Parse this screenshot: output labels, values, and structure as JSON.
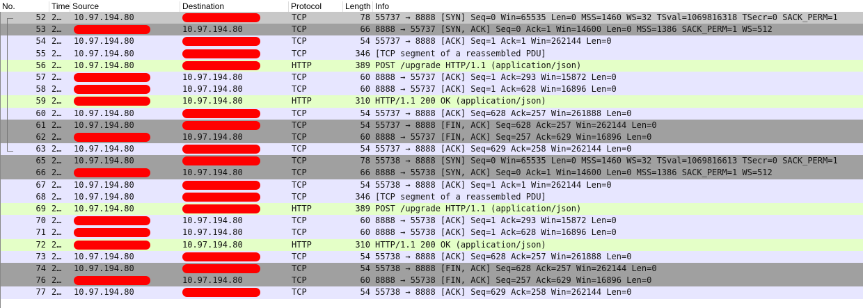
{
  "columns": {
    "no": "No.",
    "time": "Time",
    "source": "Source",
    "destination": "Destination",
    "protocol": "Protocol",
    "length": "Length",
    "info": "Info"
  },
  "colors": {
    "tcp": "#e7e6ff",
    "http": "#e4ffc7",
    "flags": "#a0a0a0",
    "selected": "#c8c8c8",
    "redaction": "#ff0000"
  },
  "rows": [
    {
      "no": "52",
      "time": "2…",
      "source": "10.97.194.80",
      "destination": "",
      "protocol": "TCP",
      "length": "78",
      "info": "55737 → 8888 [SYN] Seq=0 Win=65535 Len=0 MSS=1460 WS=32 TSval=1069816318 TSecr=0 SACK_PERM=1",
      "style": "sel"
    },
    {
      "no": "53",
      "time": "2…",
      "source": "",
      "destination": "10.97.194.80",
      "protocol": "TCP",
      "length": "66",
      "info": "8888 → 55737 [SYN, ACK] Seq=0 Ack=1 Win=14600 Len=0 MSS=1386 SACK_PERM=1 WS=512",
      "style": "flag"
    },
    {
      "no": "54",
      "time": "2…",
      "source": "10.97.194.80",
      "destination": "",
      "protocol": "TCP",
      "length": "54",
      "info": "55737 → 8888 [ACK] Seq=1 Ack=1 Win=262144 Len=0",
      "style": "tcp"
    },
    {
      "no": "55",
      "time": "2…",
      "source": "10.97.194.80",
      "destination": "",
      "protocol": "TCP",
      "length": "346",
      "info": "[TCP segment of a reassembled PDU]",
      "style": "tcp"
    },
    {
      "no": "56",
      "time": "2…",
      "source": "10.97.194.80",
      "destination": "",
      "protocol": "HTTP",
      "length": "389",
      "info": "POST /upgrade HTTP/1.1  (application/json)",
      "style": "http"
    },
    {
      "no": "57",
      "time": "2…",
      "source": "",
      "destination": "10.97.194.80",
      "protocol": "TCP",
      "length": "60",
      "info": "8888 → 55737 [ACK] Seq=1 Ack=293 Win=15872 Len=0",
      "style": "tcp"
    },
    {
      "no": "58",
      "time": "2…",
      "source": "",
      "destination": "10.97.194.80",
      "protocol": "TCP",
      "length": "60",
      "info": "8888 → 55737 [ACK] Seq=1 Ack=628 Win=16896 Len=0",
      "style": "tcp"
    },
    {
      "no": "59",
      "time": "2…",
      "source": "",
      "destination": "10.97.194.80",
      "protocol": "HTTP",
      "length": "310",
      "info": "HTTP/1.1 200 OK  (application/json)",
      "style": "http"
    },
    {
      "no": "60",
      "time": "2…",
      "source": "10.97.194.80",
      "destination": "",
      "protocol": "TCP",
      "length": "54",
      "info": "55737 → 8888 [ACK] Seq=628 Ack=257 Win=261888 Len=0",
      "style": "tcp"
    },
    {
      "no": "61",
      "time": "2…",
      "source": "10.97.194.80",
      "destination": "",
      "protocol": "TCP",
      "length": "54",
      "info": "55737 → 8888 [FIN, ACK] Seq=628 Ack=257 Win=262144 Len=0",
      "style": "flag"
    },
    {
      "no": "62",
      "time": "2…",
      "source": "",
      "destination": "10.97.194.80",
      "protocol": "TCP",
      "length": "60",
      "info": "8888 → 55737 [FIN, ACK] Seq=257 Ack=629 Win=16896 Len=0",
      "style": "flag"
    },
    {
      "no": "63",
      "time": "2…",
      "source": "10.97.194.80",
      "destination": "",
      "protocol": "TCP",
      "length": "54",
      "info": "55737 → 8888 [ACK] Seq=629 Ack=258 Win=262144 Len=0",
      "style": "tcp"
    },
    {
      "no": "65",
      "time": "2…",
      "source": "10.97.194.80",
      "destination": "",
      "protocol": "TCP",
      "length": "78",
      "info": "55738 → 8888 [SYN] Seq=0 Win=65535 Len=0 MSS=1460 WS=32 TSval=1069816613 TSecr=0 SACK_PERM=1",
      "style": "flag"
    },
    {
      "no": "66",
      "time": "2…",
      "source": "",
      "destination": "10.97.194.80",
      "protocol": "TCP",
      "length": "66",
      "info": "8888 → 55738 [SYN, ACK] Seq=0 Ack=1 Win=14600 Len=0 MSS=1386 SACK_PERM=1 WS=512",
      "style": "flag"
    },
    {
      "no": "67",
      "time": "2…",
      "source": "10.97.194.80",
      "destination": "",
      "protocol": "TCP",
      "length": "54",
      "info": "55738 → 8888 [ACK] Seq=1 Ack=1 Win=262144 Len=0",
      "style": "tcp"
    },
    {
      "no": "68",
      "time": "2…",
      "source": "10.97.194.80",
      "destination": "",
      "protocol": "TCP",
      "length": "346",
      "info": "[TCP segment of a reassembled PDU]",
      "style": "tcp"
    },
    {
      "no": "69",
      "time": "2…",
      "source": "10.97.194.80",
      "destination": "",
      "protocol": "HTTP",
      "length": "389",
      "info": "POST /upgrade HTTP/1.1  (application/json)",
      "style": "http"
    },
    {
      "no": "70",
      "time": "2…",
      "source": "",
      "destination": "10.97.194.80",
      "protocol": "TCP",
      "length": "60",
      "info": "8888 → 55738 [ACK] Seq=1 Ack=293 Win=15872 Len=0",
      "style": "tcp"
    },
    {
      "no": "71",
      "time": "2…",
      "source": "",
      "destination": "10.97.194.80",
      "protocol": "TCP",
      "length": "60",
      "info": "8888 → 55738 [ACK] Seq=1 Ack=628 Win=16896 Len=0",
      "style": "tcp"
    },
    {
      "no": "72",
      "time": "2…",
      "source": "",
      "destination": "10.97.194.80",
      "protocol": "HTTP",
      "length": "310",
      "info": "HTTP/1.1 200 OK  (application/json)",
      "style": "http"
    },
    {
      "no": "73",
      "time": "2…",
      "source": "10.97.194.80",
      "destination": "",
      "protocol": "TCP",
      "length": "54",
      "info": "55738 → 8888 [ACK] Seq=628 Ack=257 Win=261888 Len=0",
      "style": "tcp"
    },
    {
      "no": "74",
      "time": "2…",
      "source": "10.97.194.80",
      "destination": "",
      "protocol": "TCP",
      "length": "54",
      "info": "55738 → 8888 [FIN, ACK] Seq=628 Ack=257 Win=262144 Len=0",
      "style": "flag"
    },
    {
      "no": "76",
      "time": "2…",
      "source": "",
      "destination": "10.97.194.80",
      "protocol": "TCP",
      "length": "60",
      "info": "8888 → 55738 [FIN, ACK] Seq=257 Ack=629 Win=16896 Len=0",
      "style": "flag"
    },
    {
      "no": "77",
      "time": "2…",
      "source": "10.97.194.80",
      "destination": "",
      "protocol": "TCP",
      "length": "54",
      "info": "55738 → 8888 [ACK] Seq=629 Ack=258 Win=262144 Len=0",
      "style": "tcp"
    }
  ]
}
